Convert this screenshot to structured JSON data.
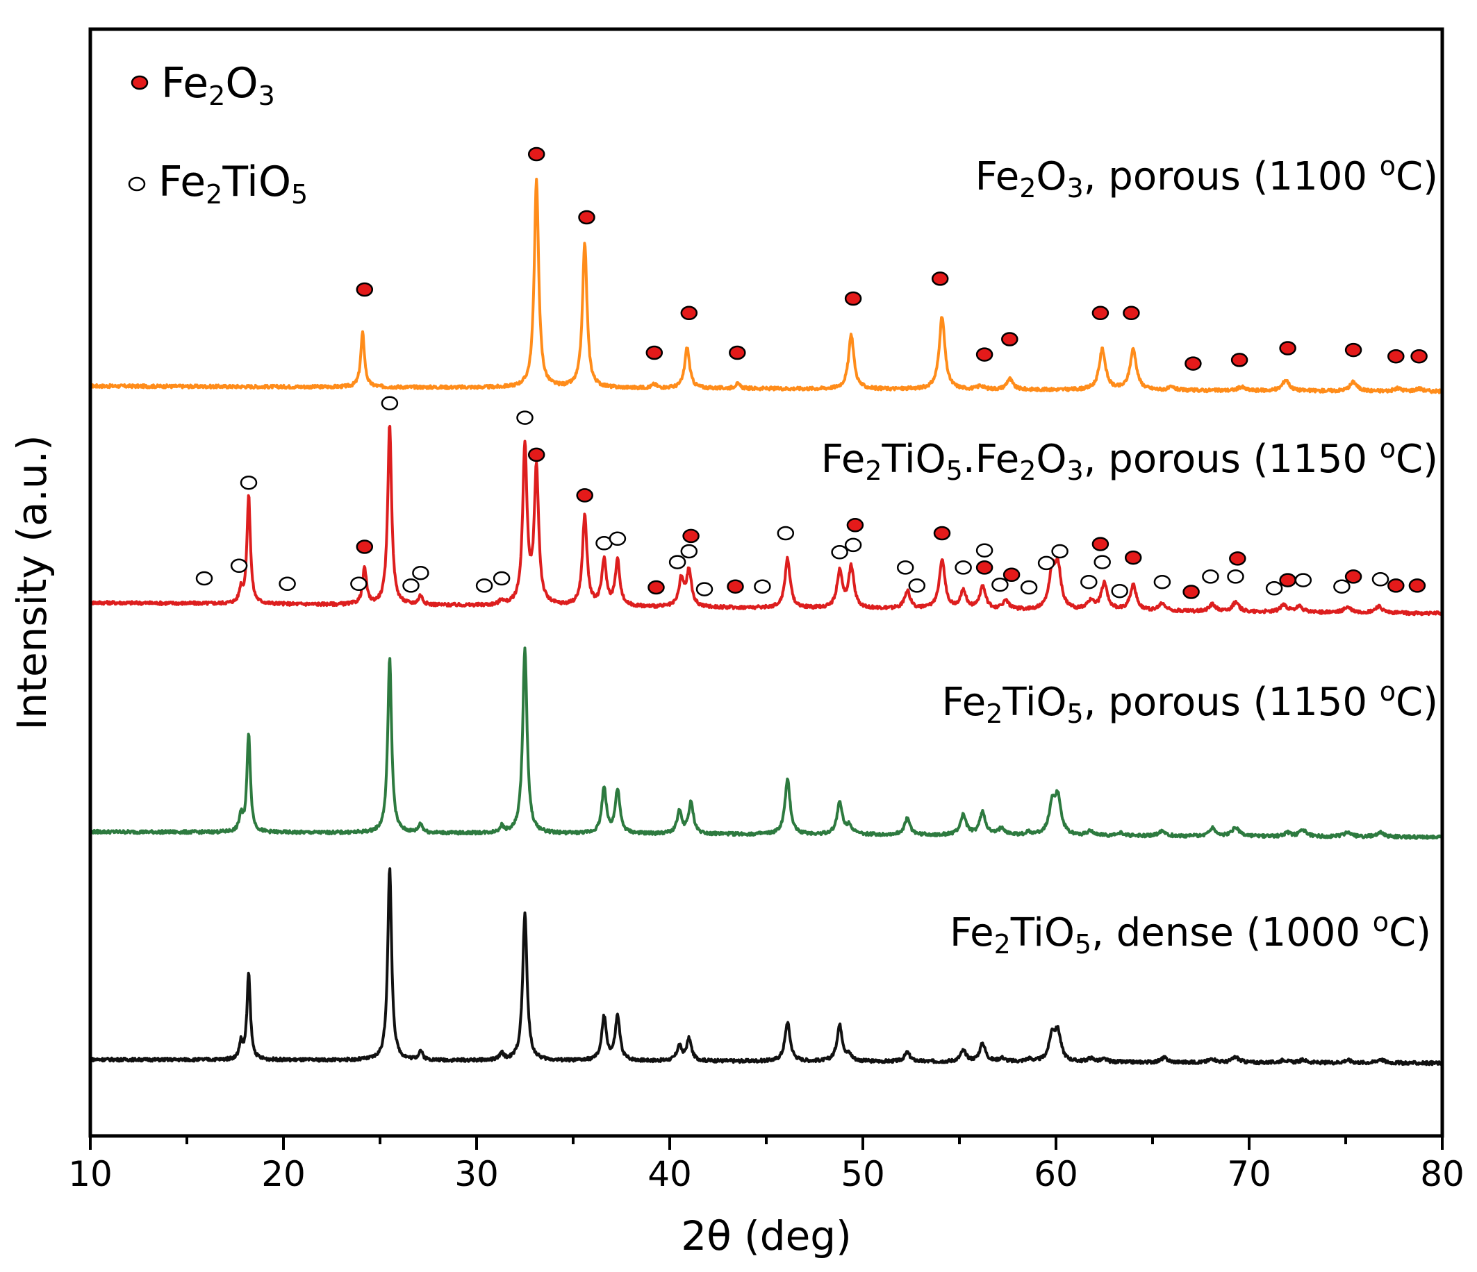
{
  "chart_data": {
    "type": "line",
    "title": "",
    "xlabel": "2θ (deg)",
    "ylabel": "Intensity (a.u.)",
    "xlim": [
      10,
      80
    ],
    "xticks": [
      10,
      20,
      30,
      40,
      50,
      60,
      70,
      80
    ],
    "yticks": [],
    "grid": false,
    "legend": [
      {
        "id": "fe2o3",
        "marker": "filled-red-circle",
        "base": "Fe",
        "sub1": "2",
        "mid": "O",
        "sub2": "3"
      },
      {
        "id": "fe2tio5",
        "marker": "open-circle",
        "base": "Fe",
        "sub1": "2",
        "mid": "TiO",
        "sub2": "5"
      }
    ],
    "colors": {
      "orange": "#ff8c1a",
      "red": "#dd1e1e",
      "green": "#2d7a3f",
      "black": "#111111",
      "marker_fill": "#e41a1a"
    },
    "series": [
      {
        "id": "s1",
        "name": "Fe2O3, porous (1100 °C)",
        "label": "Fe₂O₃, porous (1100 ºC)",
        "label_parts": [
          {
            "t": "Fe"
          },
          {
            "t": "2",
            "sub": true
          },
          {
            "t": "O"
          },
          {
            "t": "3",
            "sub": true
          },
          {
            "t": ", porous (1100 "
          },
          {
            "t": "o",
            "sup": true
          },
          {
            "t": "C)"
          }
        ],
        "color": "#ff8c1a",
        "baseline": 0.0,
        "baseline_end": -0.06,
        "peaks": [
          [
            24.1,
            0.6
          ],
          [
            33.1,
            2.3
          ],
          [
            35.6,
            1.6
          ],
          [
            39.2,
            0.04
          ],
          [
            40.9,
            0.45
          ],
          [
            43.5,
            0.05
          ],
          [
            49.4,
            0.6
          ],
          [
            54.1,
            0.8
          ],
          [
            56.1,
            0.04
          ],
          [
            57.6,
            0.12
          ],
          [
            62.4,
            0.45
          ],
          [
            64.0,
            0.45
          ],
          [
            66.0,
            0.03
          ],
          [
            69.6,
            0.04
          ],
          [
            71.9,
            0.12
          ],
          [
            75.4,
            0.1
          ],
          [
            77.7,
            0.03
          ],
          [
            78.8,
            0.03
          ]
        ],
        "markers": [
          {
            "x": 24.2,
            "y": 0.9,
            "type": "fe2o3"
          },
          {
            "x": 33.1,
            "y": 2.4,
            "type": "fe2o3"
          },
          {
            "x": 35.7,
            "y": 1.7,
            "type": "fe2o3"
          },
          {
            "x": 39.2,
            "y": 0.2,
            "type": "fe2o3"
          },
          {
            "x": 41.0,
            "y": 0.64,
            "type": "fe2o3"
          },
          {
            "x": 43.5,
            "y": 0.2,
            "type": "fe2o3"
          },
          {
            "x": 49.5,
            "y": 0.8,
            "type": "fe2o3"
          },
          {
            "x": 54.0,
            "y": 1.02,
            "type": "fe2o3"
          },
          {
            "x": 56.3,
            "y": 0.18,
            "type": "fe2o3"
          },
          {
            "x": 57.6,
            "y": 0.35,
            "type": "fe2o3"
          },
          {
            "x": 62.3,
            "y": 0.64,
            "type": "fe2o3"
          },
          {
            "x": 63.9,
            "y": 0.64,
            "type": "fe2o3"
          },
          {
            "x": 67.1,
            "y": 0.08,
            "type": "fe2o3"
          },
          {
            "x": 69.5,
            "y": 0.12,
            "type": "fe2o3"
          },
          {
            "x": 72.0,
            "y": 0.25,
            "type": "fe2o3"
          },
          {
            "x": 75.4,
            "y": 0.23,
            "type": "fe2o3"
          },
          {
            "x": 77.6,
            "y": 0.16,
            "type": "fe2o3"
          },
          {
            "x": 78.8,
            "y": 0.16,
            "type": "fe2o3"
          }
        ]
      },
      {
        "id": "s2",
        "name": "Fe2TiO5.Fe2O3, porous (1150 °C)",
        "label": "Fe₂TiO₅.Fe₂O₃, porous (1150 ºC)",
        "label_parts": [
          {
            "t": "Fe"
          },
          {
            "t": "2",
            "sub": true
          },
          {
            "t": "TiO"
          },
          {
            "t": "5",
            "sub": true
          },
          {
            "t": ".Fe"
          },
          {
            "t": "2",
            "sub": true
          },
          {
            "t": "O"
          },
          {
            "t": "3",
            "sub": true
          },
          {
            "t": ", porous (1150 "
          },
          {
            "t": "o",
            "sup": true
          },
          {
            "t": "C)"
          }
        ],
        "color": "#dd1e1e",
        "baseline": 0.0,
        "baseline_end": -0.12,
        "peaks": [
          [
            17.8,
            0.15
          ],
          [
            18.2,
            1.2
          ],
          [
            24.2,
            0.4
          ],
          [
            25.5,
            2.0
          ],
          [
            27.1,
            0.1
          ],
          [
            31.3,
            0.05
          ],
          [
            32.5,
            1.75
          ],
          [
            33.1,
            1.5
          ],
          [
            35.6,
            1.0
          ],
          [
            36.6,
            0.5
          ],
          [
            37.3,
            0.5
          ],
          [
            40.6,
            0.3
          ],
          [
            41.0,
            0.4
          ],
          [
            46.1,
            0.55
          ],
          [
            48.8,
            0.4
          ],
          [
            49.4,
            0.45
          ],
          [
            52.3,
            0.2
          ],
          [
            54.1,
            0.55
          ],
          [
            55.2,
            0.2
          ],
          [
            56.2,
            0.25
          ],
          [
            57.4,
            0.1
          ],
          [
            59.8,
            0.4
          ],
          [
            60.1,
            0.45
          ],
          [
            61.8,
            0.1
          ],
          [
            62.5,
            0.3
          ],
          [
            64.0,
            0.28
          ],
          [
            65.5,
            0.08
          ],
          [
            68.1,
            0.08
          ],
          [
            69.3,
            0.1
          ],
          [
            71.8,
            0.08
          ],
          [
            72.6,
            0.06
          ],
          [
            75.1,
            0.06
          ],
          [
            76.7,
            0.07
          ]
        ],
        "markers": [
          {
            "x": 15.9,
            "y": 0.1,
            "type": "fe2tio5"
          },
          {
            "x": 17.7,
            "y": 0.24,
            "type": "fe2tio5"
          },
          {
            "x": 18.2,
            "y": 1.16,
            "type": "fe2tio5"
          },
          {
            "x": 20.2,
            "y": 0.04,
            "type": "fe2tio5"
          },
          {
            "x": 23.9,
            "y": 0.04,
            "type": "fe2tio5"
          },
          {
            "x": 24.2,
            "y": 0.45,
            "type": "fe2o3"
          },
          {
            "x": 25.5,
            "y": 2.04,
            "type": "fe2tio5"
          },
          {
            "x": 26.6,
            "y": 0.02,
            "type": "fe2tio5"
          },
          {
            "x": 27.1,
            "y": 0.16,
            "type": "fe2tio5"
          },
          {
            "x": 30.4,
            "y": 0.02,
            "type": "fe2tio5"
          },
          {
            "x": 31.3,
            "y": 0.1,
            "type": "fe2tio5"
          },
          {
            "x": 32.5,
            "y": 1.88,
            "type": "fe2tio5"
          },
          {
            "x": 33.1,
            "y": 1.47,
            "type": "fe2o3"
          },
          {
            "x": 35.6,
            "y": 1.02,
            "type": "fe2o3"
          },
          {
            "x": 36.6,
            "y": 0.49,
            "type": "fe2tio5"
          },
          {
            "x": 37.3,
            "y": 0.54,
            "type": "fe2tio5"
          },
          {
            "x": 39.3,
            "y": 0.0,
            "type": "fe2o3"
          },
          {
            "x": 40.4,
            "y": 0.28,
            "type": "fe2tio5"
          },
          {
            "x": 41.0,
            "y": 0.4,
            "type": "fe2tio5"
          },
          {
            "x": 41.1,
            "y": 0.57,
            "type": "fe2o3"
          },
          {
            "x": 41.8,
            "y": -0.02,
            "type": "fe2tio5"
          },
          {
            "x": 43.4,
            "y": 0.01,
            "type": "fe2o3"
          },
          {
            "x": 44.8,
            "y": 0.01,
            "type": "fe2tio5"
          },
          {
            "x": 46.0,
            "y": 0.6,
            "type": "fe2tio5"
          },
          {
            "x": 48.8,
            "y": 0.39,
            "type": "fe2tio5"
          },
          {
            "x": 49.5,
            "y": 0.47,
            "type": "fe2tio5"
          },
          {
            "x": 49.6,
            "y": 0.69,
            "type": "fe2o3"
          },
          {
            "x": 52.2,
            "y": 0.22,
            "type": "fe2tio5"
          },
          {
            "x": 52.8,
            "y": 0.02,
            "type": "fe2tio5"
          },
          {
            "x": 54.1,
            "y": 0.6,
            "type": "fe2o3"
          },
          {
            "x": 55.2,
            "y": 0.22,
            "type": "fe2tio5"
          },
          {
            "x": 56.3,
            "y": 0.41,
            "type": "fe2tio5"
          },
          {
            "x": 56.3,
            "y": 0.22,
            "type": "fe2o3"
          },
          {
            "x": 57.1,
            "y": 0.03,
            "type": "fe2tio5"
          },
          {
            "x": 57.7,
            "y": 0.14,
            "type": "fe2o3"
          },
          {
            "x": 58.6,
            "y": 0.0,
            "type": "fe2tio5"
          },
          {
            "x": 59.5,
            "y": 0.27,
            "type": "fe2tio5"
          },
          {
            "x": 60.2,
            "y": 0.4,
            "type": "fe2tio5"
          },
          {
            "x": 61.7,
            "y": 0.06,
            "type": "fe2tio5"
          },
          {
            "x": 62.3,
            "y": 0.48,
            "type": "fe2o3"
          },
          {
            "x": 62.4,
            "y": 0.28,
            "type": "fe2tio5"
          },
          {
            "x": 63.3,
            "y": -0.04,
            "type": "fe2tio5"
          },
          {
            "x": 64.0,
            "y": 0.33,
            "type": "fe2o3"
          },
          {
            "x": 65.5,
            "y": 0.06,
            "type": "fe2tio5"
          },
          {
            "x": 67.0,
            "y": -0.05,
            "type": "fe2o3"
          },
          {
            "x": 68.0,
            "y": 0.12,
            "type": "fe2tio5"
          },
          {
            "x": 69.3,
            "y": 0.12,
            "type": "fe2tio5"
          },
          {
            "x": 69.4,
            "y": 0.32,
            "type": "fe2o3"
          },
          {
            "x": 71.3,
            "y": -0.01,
            "type": "fe2tio5"
          },
          {
            "x": 72.0,
            "y": 0.08,
            "type": "fe2o3"
          },
          {
            "x": 72.8,
            "y": 0.08,
            "type": "fe2tio5"
          },
          {
            "x": 74.8,
            "y": 0.01,
            "type": "fe2tio5"
          },
          {
            "x": 75.4,
            "y": 0.12,
            "type": "fe2o3"
          },
          {
            "x": 76.8,
            "y": 0.09,
            "type": "fe2tio5"
          },
          {
            "x": 77.6,
            "y": 0.02,
            "type": "fe2o3"
          },
          {
            "x": 78.7,
            "y": 0.02,
            "type": "fe2o3"
          }
        ]
      },
      {
        "id": "s3",
        "name": "Fe2TiO5, porous (1150 °C)",
        "label": "Fe₂TiO₅, porous (1150 ºC)",
        "label_parts": [
          {
            "t": "Fe"
          },
          {
            "t": "2",
            "sub": true
          },
          {
            "t": "TiO"
          },
          {
            "t": "5",
            "sub": true
          },
          {
            "t": ", porous (1150 "
          },
          {
            "t": "o",
            "sup": true
          },
          {
            "t": "C)"
          }
        ],
        "color": "#2d7a3f",
        "baseline": 0.0,
        "baseline_end": -0.06,
        "peaks": [
          [
            17.8,
            0.18
          ],
          [
            18.2,
            1.1
          ],
          [
            25.5,
            1.93
          ],
          [
            27.1,
            0.1
          ],
          [
            31.3,
            0.07
          ],
          [
            32.5,
            2.05
          ],
          [
            36.6,
            0.5
          ],
          [
            37.3,
            0.48
          ],
          [
            40.5,
            0.24
          ],
          [
            41.1,
            0.34
          ],
          [
            46.1,
            0.6
          ],
          [
            48.8,
            0.35
          ],
          [
            49.3,
            0.1
          ],
          [
            52.3,
            0.18
          ],
          [
            55.2,
            0.22
          ],
          [
            56.2,
            0.25
          ],
          [
            57.2,
            0.08
          ],
          [
            58.6,
            0.03
          ],
          [
            59.8,
            0.32
          ],
          [
            60.1,
            0.4
          ],
          [
            61.8,
            0.05
          ],
          [
            63.4,
            0.03
          ],
          [
            65.5,
            0.06
          ],
          [
            68.1,
            0.09
          ],
          [
            69.3,
            0.1
          ],
          [
            72.0,
            0.04
          ],
          [
            72.8,
            0.07
          ],
          [
            75.1,
            0.05
          ],
          [
            76.8,
            0.05
          ]
        ],
        "markers": []
      },
      {
        "id": "s4",
        "name": "Fe2TiO5, dense (1000 °C)",
        "label": "Fe₂TiO₅, dense (1000 ºC)",
        "label_parts": [
          {
            "t": "Fe"
          },
          {
            "t": "2",
            "sub": true
          },
          {
            "t": "TiO"
          },
          {
            "t": "5",
            "sub": true
          },
          {
            "t": ", dense (1000 "
          },
          {
            "t": "o",
            "sup": true
          },
          {
            "t": "C)"
          }
        ],
        "color": "#111111",
        "baseline": 0.0,
        "baseline_end": -0.04,
        "peaks": [
          [
            17.8,
            0.18
          ],
          [
            18.2,
            0.95
          ],
          [
            25.5,
            2.13
          ],
          [
            27.1,
            0.1
          ],
          [
            31.3,
            0.07
          ],
          [
            32.5,
            1.63
          ],
          [
            36.6,
            0.48
          ],
          [
            37.3,
            0.49
          ],
          [
            40.5,
            0.16
          ],
          [
            41.0,
            0.24
          ],
          [
            46.1,
            0.43
          ],
          [
            48.8,
            0.4
          ],
          [
            49.3,
            0.06
          ],
          [
            52.3,
            0.1
          ],
          [
            55.2,
            0.12
          ],
          [
            56.2,
            0.2
          ],
          [
            57.2,
            0.04
          ],
          [
            58.6,
            0.03
          ],
          [
            59.8,
            0.28
          ],
          [
            60.1,
            0.3
          ],
          [
            61.8,
            0.04
          ],
          [
            62.5,
            0.03
          ],
          [
            65.6,
            0.05
          ],
          [
            68.1,
            0.04
          ],
          [
            69.3,
            0.06
          ],
          [
            71.8,
            0.03
          ],
          [
            72.8,
            0.03
          ],
          [
            75.1,
            0.03
          ],
          [
            76.8,
            0.04
          ]
        ],
        "markers": []
      }
    ]
  }
}
